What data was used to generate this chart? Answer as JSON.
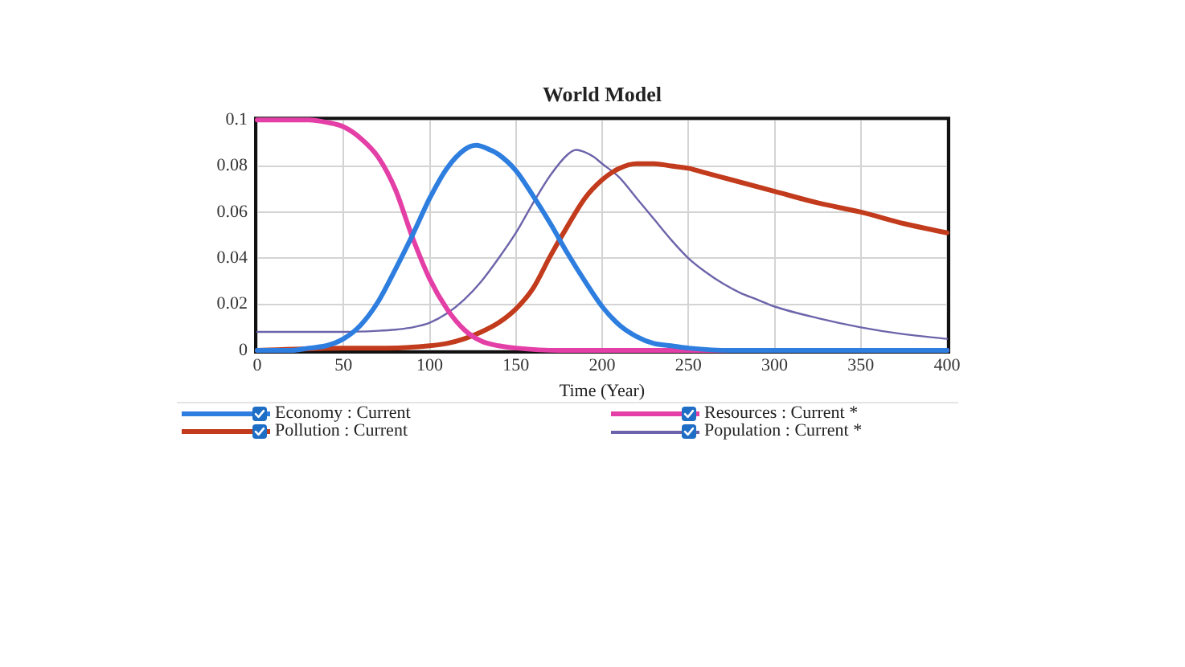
{
  "chart_data": {
    "type": "line",
    "title": "World Model",
    "xlabel": "Time (Year)",
    "xlim": [
      0,
      400
    ],
    "xticks": [
      0,
      50,
      100,
      150,
      200,
      250,
      300,
      350,
      400
    ],
    "ylim": [
      0,
      0.1
    ],
    "yticks": [
      0,
      0.02,
      0.04,
      0.06,
      0.08,
      0.1
    ],
    "grid": true,
    "legend": "bottom",
    "series": [
      {
        "name": "Economy : Current",
        "color": "#2e7ee0",
        "x": [
          0,
          10,
          20,
          30,
          40,
          50,
          60,
          70,
          80,
          90,
          100,
          110,
          120,
          127,
          135,
          140,
          150,
          160,
          170,
          180,
          190,
          200,
          210,
          220,
          230,
          240,
          250,
          275,
          300,
          400
        ],
        "values": [
          0,
          0,
          0,
          0.001,
          0.002,
          0.005,
          0.011,
          0.021,
          0.035,
          0.05,
          0.066,
          0.079,
          0.087,
          0.089,
          0.087,
          0.085,
          0.078,
          0.067,
          0.055,
          0.042,
          0.03,
          0.019,
          0.011,
          0.006,
          0.003,
          0.002,
          0.001,
          0,
          0,
          0
        ]
      },
      {
        "name": "Resources : Current *",
        "color": "#e43fa6",
        "x": [
          0,
          10,
          20,
          30,
          40,
          50,
          60,
          70,
          80,
          90,
          100,
          110,
          120,
          130,
          140,
          150,
          175,
          200,
          400
        ],
        "values": [
          0.1,
          0.1,
          0.1,
          0.1,
          0.099,
          0.097,
          0.092,
          0.084,
          0.07,
          0.049,
          0.031,
          0.018,
          0.009,
          0.004,
          0.002,
          0.001,
          0,
          0,
          0
        ]
      },
      {
        "name": "Pollution : Current",
        "color": "#c23b1c",
        "x": [
          0,
          50,
          75,
          100,
          110,
          120,
          130,
          140,
          150,
          160,
          170,
          180,
          190,
          200,
          210,
          220,
          230,
          240,
          250,
          260,
          275,
          300,
          325,
          350,
          375,
          400
        ],
        "values": [
          0,
          0.001,
          0.001,
          0.002,
          0.003,
          0.005,
          0.008,
          0.012,
          0.018,
          0.027,
          0.041,
          0.054,
          0.066,
          0.074,
          0.079,
          0.081,
          0.081,
          0.08,
          0.079,
          0.077,
          0.074,
          0.069,
          0.064,
          0.06,
          0.055,
          0.051
        ]
      },
      {
        "name": "Population : Current *",
        "color": "#6c64aa",
        "x": [
          0,
          25,
          50,
          70,
          80,
          90,
          100,
          110,
          120,
          130,
          140,
          150,
          160,
          170,
          180,
          185,
          190,
          195,
          200,
          210,
          220,
          230,
          240,
          250,
          260,
          270,
          280,
          290,
          300,
          325,
          350,
          375,
          400
        ],
        "values": [
          0.008,
          0.008,
          0.008,
          0.0085,
          0.009,
          0.01,
          0.012,
          0.016,
          0.022,
          0.03,
          0.04,
          0.051,
          0.064,
          0.076,
          0.085,
          0.087,
          0.086,
          0.084,
          0.081,
          0.075,
          0.066,
          0.057,
          0.048,
          0.04,
          0.034,
          0.029,
          0.025,
          0.022,
          0.019,
          0.014,
          0.01,
          0.007,
          0.005
        ]
      }
    ]
  }
}
